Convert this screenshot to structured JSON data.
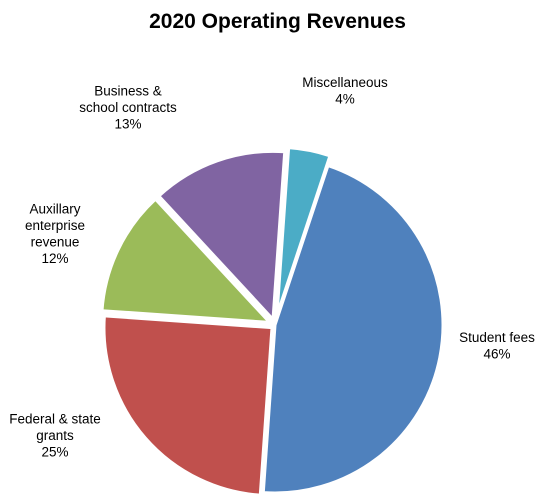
{
  "chart_data": {
    "type": "pie",
    "title": "2020 Operating Revenues",
    "start_angle_deg": 4,
    "direction": "clockwise",
    "slices": [
      {
        "label": [
          "Miscellaneous"
        ],
        "percent_label": "4%",
        "value": 4,
        "color": "#4bacc6",
        "explode": 10
      },
      {
        "label": [
          "Student fees"
        ],
        "percent_label": "46%",
        "value": 46,
        "color": "#4f81bd",
        "explode": 0
      },
      {
        "label": [
          "Federal & state",
          "grants"
        ],
        "percent_label": "25%",
        "value": 25,
        "color": "#c0504d",
        "explode": 4
      },
      {
        "label": [
          "Auxillary",
          "enterprise",
          "revenue"
        ],
        "percent_label": "12%",
        "value": 12,
        "color": "#9bbb59",
        "explode": 6
      },
      {
        "label": [
          "Business &",
          "school contracts"
        ],
        "percent_label": "13%",
        "value": 13,
        "color": "#8064a2",
        "explode": 6
      }
    ]
  }
}
